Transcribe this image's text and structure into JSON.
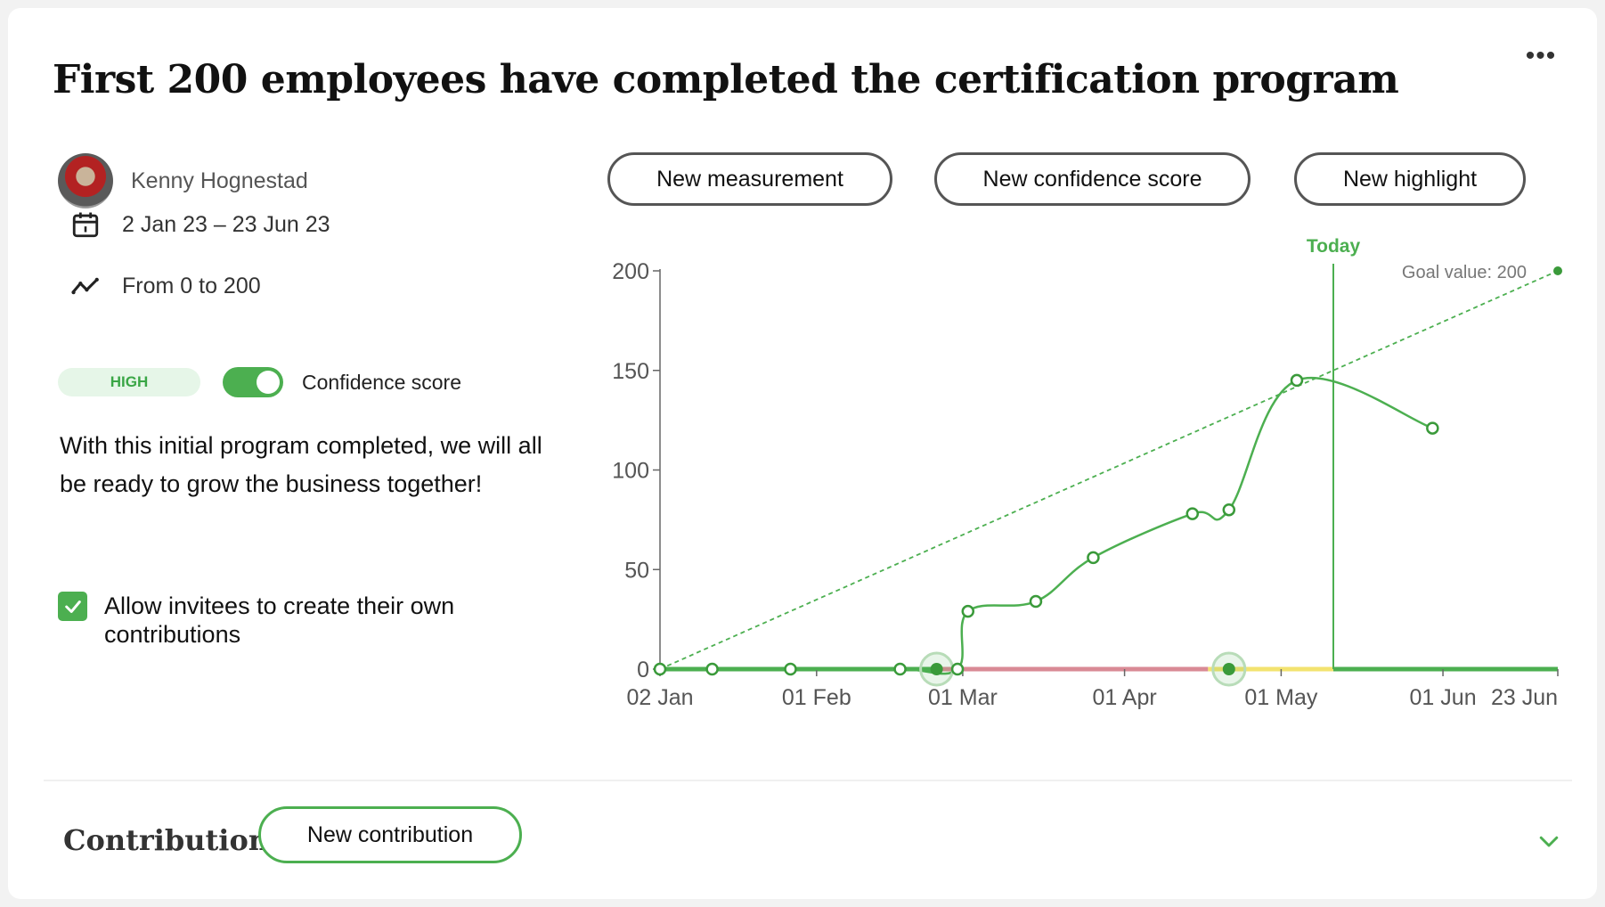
{
  "header": {
    "title": "First 200 employees have completed the certification program",
    "more_label": "•••"
  },
  "owner": {
    "name": "Kenny Hognestad"
  },
  "dates": {
    "range": "2 Jan 23 – 23 Jun 23"
  },
  "progress": {
    "range": "From 0 to 200"
  },
  "confidence": {
    "badge": "HIGH",
    "label": "Confidence score",
    "enabled": true
  },
  "description": "With this initial program completed, we will all be ready to grow the business together!",
  "allow_invitees": {
    "label": "Allow invitees to create their own contributions",
    "checked": true
  },
  "actions": {
    "new_measurement": "New measurement",
    "new_confidence": "New confidence score",
    "new_highlight": "New highlight"
  },
  "contributions": {
    "title": "Contributions",
    "new_label": "New contribution"
  },
  "colors": {
    "green": "#4caf50",
    "dark_green": "#3a9a3a",
    "red_confidence": "#d98a95",
    "yellow_confidence": "#f3e36f",
    "axis": "#666666"
  },
  "chart_data": {
    "type": "line",
    "today_label": "Today",
    "goal_label": "Goal value: 200",
    "goal_value": 200,
    "x_axis": {
      "start": "2023-01-02",
      "end": "2023-06-23",
      "ticks": [
        {
          "date": "2023-01-02",
          "label": "02 Jan"
        },
        {
          "date": "2023-02-01",
          "label": "01 Feb"
        },
        {
          "date": "2023-03-01",
          "label": "01 Mar"
        },
        {
          "date": "2023-04-01",
          "label": "01 Apr"
        },
        {
          "date": "2023-05-01",
          "label": "01 May"
        },
        {
          "date": "2023-06-01",
          "label": "01 Jun"
        },
        {
          "date": "2023-06-23",
          "label": "23 Jun"
        }
      ]
    },
    "y_axis": {
      "min": 0,
      "max": 200,
      "ticks": [
        0,
        50,
        100,
        150,
        200
      ]
    },
    "today": "2023-05-11",
    "series": [
      {
        "type": "measurements",
        "points": [
          {
            "date": "2023-01-02",
            "value": 0
          },
          {
            "date": "2023-01-12",
            "value": 0
          },
          {
            "date": "2023-01-27",
            "value": 0
          },
          {
            "date": "2023-02-17",
            "value": 0
          },
          {
            "date": "2023-02-28",
            "value": 0
          },
          {
            "date": "2023-03-02",
            "value": 29
          },
          {
            "date": "2023-03-15",
            "value": 34
          },
          {
            "date": "2023-03-26",
            "value": 56
          },
          {
            "date": "2023-04-14",
            "value": 78
          },
          {
            "date": "2023-04-21",
            "value": 80
          },
          {
            "date": "2023-05-30",
            "value": 121
          },
          {
            "date": "2023-05-04",
            "value": 145
          }
        ]
      },
      {
        "type": "goal_line",
        "points": [
          {
            "date": "2023-01-02",
            "value": 0
          },
          {
            "date": "2023-06-23",
            "value": 200
          }
        ]
      }
    ],
    "confidence_segments": [
      {
        "from": "2023-01-02",
        "to": "2023-02-24",
        "level": "green"
      },
      {
        "from": "2023-02-24",
        "to": "2023-04-17",
        "level": "red"
      },
      {
        "from": "2023-04-17",
        "to": "2023-05-11",
        "level": "yellow"
      },
      {
        "from": "2023-05-11",
        "to": "2023-06-23",
        "level": "green"
      }
    ],
    "confidence_markers": [
      "2023-02-24",
      "2023-04-21"
    ]
  }
}
